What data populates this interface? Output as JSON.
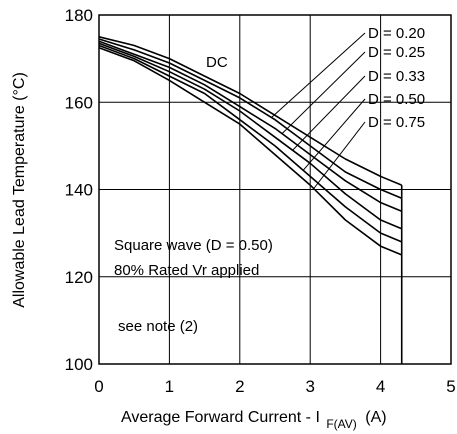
{
  "chart_data": {
    "type": "line",
    "xlabel_main": "Average Forward Current - I",
    "xlabel_sub": "F(AV)",
    "xlabel_unit": "(A)",
    "ylabel": "Allowable Lead Temperature (°C)",
    "xlim": [
      0,
      5
    ],
    "ylim": [
      100,
      180
    ],
    "xticks": [
      "0",
      "1",
      "2",
      "3",
      "4",
      "5"
    ],
    "yticks": [
      "100",
      "120",
      "140",
      "160",
      "180"
    ],
    "grid": true,
    "series": [
      {
        "name": "DC",
        "x": [
          0,
          0.5,
          1,
          1.5,
          2,
          2.5,
          3,
          3.5,
          4,
          4.3
        ],
        "y": [
          175,
          173,
          170,
          166,
          162,
          157,
          152,
          147,
          143,
          141
        ]
      },
      {
        "name": "D = 0.20",
        "x": [
          0,
          0.5,
          1,
          1.5,
          2,
          2.5,
          3,
          3.5,
          4,
          4.3
        ],
        "y": [
          174.5,
          172,
          169,
          165,
          161,
          156,
          150,
          144,
          140,
          138
        ]
      },
      {
        "name": "D = 0.25",
        "x": [
          0,
          0.5,
          1,
          1.5,
          2,
          2.5,
          3,
          3.5,
          4,
          4.3
        ],
        "y": [
          174,
          171,
          168,
          164,
          159,
          154,
          148,
          142,
          137,
          135
        ]
      },
      {
        "name": "D = 0.33",
        "x": [
          0,
          0.5,
          1,
          1.5,
          2,
          2.5,
          3,
          3.5,
          4,
          4.3
        ],
        "y": [
          173.5,
          170.5,
          167,
          163,
          158,
          152,
          146,
          139,
          133,
          131
        ]
      },
      {
        "name": "D = 0.50",
        "x": [
          0,
          0.5,
          1,
          1.5,
          2,
          2.5,
          3,
          3.5,
          4,
          4.3
        ],
        "y": [
          173,
          170,
          166,
          162,
          156,
          150,
          143,
          136,
          130,
          128
        ]
      },
      {
        "name": "D = 0.75",
        "x": [
          0,
          0.5,
          1,
          1.5,
          2,
          2.5,
          3,
          3.5,
          4,
          4.3
        ],
        "y": [
          172.5,
          169.5,
          165,
          160,
          155,
          148,
          141,
          133,
          127,
          125
        ]
      }
    ],
    "cutoff_x": 4.3,
    "annotations": {
      "dc_label": "DC",
      "d_labels": [
        "D = 0.20",
        "D = 0.25",
        "D = 0.33",
        "D = 0.50",
        "D = 0.75"
      ],
      "square_wave": "Square wave (D = 0.50)",
      "rated_vr": "80% Rated Vr applied",
      "note": "see note (2)"
    }
  }
}
